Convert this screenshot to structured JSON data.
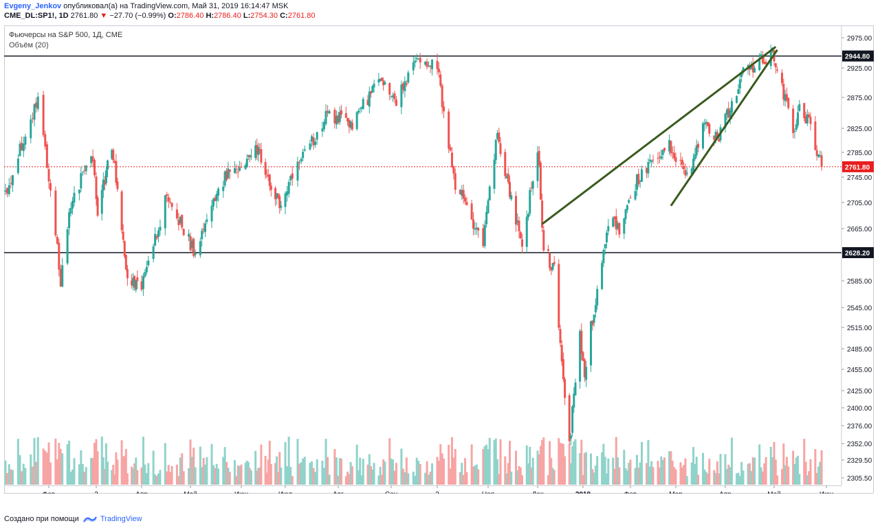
{
  "header": {
    "author": "Evgeny_Jenkov",
    "published": "опубликовал(а) на TradingView.com, Май 31, 2019 16:14:47 MSK",
    "symbol": "CME_DL:SP1!, 1D",
    "last": "2761.80",
    "change": "−27.70 (−0.99%)",
    "o_label": "O:",
    "o": "2786.40",
    "h_label": "H:",
    "h": "2786.40",
    "l_label": "L:",
    "l": "2754.30",
    "c_label": "C:",
    "c": "2761.80"
  },
  "legend": {
    "title": "Фьючерсы на S&P 500, 1Д, CME",
    "volume": "Объём (20)"
  },
  "footer": {
    "created": "Создано при помощи",
    "brand": "TradingView"
  },
  "colors": {
    "up": "#26a69a",
    "down": "#ef5350",
    "up_vol": "#8fd3ca",
    "down_vol": "#f7a4a4",
    "trend": "#3a5a1e",
    "level": "#131722",
    "price": "#e91e1e"
  },
  "chart_data": {
    "type": "candlestick",
    "title": "Фьючерсы на S&P 500, 1Д, CME",
    "y_ticks": [
      2975,
      2925,
      2875,
      2825,
      2785,
      2745,
      2705,
      2665,
      2585,
      2545,
      2515,
      2485,
      2455,
      2425,
      2400,
      2376,
      2352,
      2329.5,
      2305.5
    ],
    "y_tick_labels": [
      "2975.00",
      "2925.00",
      "2875.00",
      "2825.00",
      "2785.00",
      "2745.00",
      "2705.00",
      "2665.00",
      "2585.00",
      "2545.00",
      "2515.00",
      "2485.00",
      "2455.00",
      "2425.00",
      "2400.00",
      "2376.00",
      "2352.00",
      "2329.50",
      "2305.50"
    ],
    "x_labels": [
      "Фев",
      "2",
      "Апр",
      "Май",
      "Июн",
      "Июл",
      "Авг",
      "Сен",
      "2",
      "Ноя",
      "Дек",
      "2019",
      "Фев",
      "Мар",
      "Апр",
      "Май",
      "Июн"
    ],
    "horizontal_levels": [
      {
        "value": 2944.8,
        "label": "2944.80"
      },
      {
        "value": 2628.2,
        "label": "2628.20"
      }
    ],
    "last_price": {
      "value": 2761.8,
      "label": "2761.80"
    },
    "price_path": [
      [
        "2018-01-08",
        2720
      ],
      [
        "2018-01-26",
        2878
      ],
      [
        "2018-02-08",
        2585
      ],
      [
        "2018-02-14",
        2700
      ],
      [
        "2018-02-26",
        2785
      ],
      [
        "2018-03-02",
        2695
      ],
      [
        "2018-03-12",
        2795
      ],
      [
        "2018-03-23",
        2590
      ],
      [
        "2018-04-02",
        2575
      ],
      [
        "2018-04-17",
        2715
      ],
      [
        "2018-05-03",
        2630
      ],
      [
        "2018-05-21",
        2740
      ],
      [
        "2018-06-12",
        2790
      ],
      [
        "2018-06-28",
        2700
      ],
      [
        "2018-07-25",
        2845
      ],
      [
        "2018-08-10",
        2835
      ],
      [
        "2018-08-29",
        2910
      ],
      [
        "2018-09-07",
        2870
      ],
      [
        "2018-09-20",
        2945
      ],
      [
        "2018-10-01",
        2925
      ],
      [
        "2018-10-11",
        2740
      ],
      [
        "2018-10-29",
        2645
      ],
      [
        "2018-11-07",
        2815
      ],
      [
        "2018-11-23",
        2632
      ],
      [
        "2018-12-03",
        2795
      ],
      [
        "2018-12-07",
        2635
      ],
      [
        "2018-12-14",
        2600
      ],
      [
        "2018-12-24",
        2352
      ],
      [
        "2018-12-31",
        2500
      ],
      [
        "2019-01-03",
        2455
      ],
      [
        "2019-01-18",
        2680
      ],
      [
        "2019-01-25",
        2665
      ],
      [
        "2019-02-05",
        2740
      ],
      [
        "2019-02-25",
        2800
      ],
      [
        "2019-03-08",
        2745
      ],
      [
        "2019-03-18",
        2830
      ],
      [
        "2019-03-27",
        2805
      ],
      [
        "2019-04-12",
        2915
      ],
      [
        "2019-04-30",
        2950
      ],
      [
        "2019-05-13",
        2820
      ],
      [
        "2019-05-17",
        2860
      ],
      [
        "2019-05-24",
        2828
      ],
      [
        "2019-05-31",
        2761.8
      ]
    ],
    "volume_axis": "Объём (20)"
  }
}
